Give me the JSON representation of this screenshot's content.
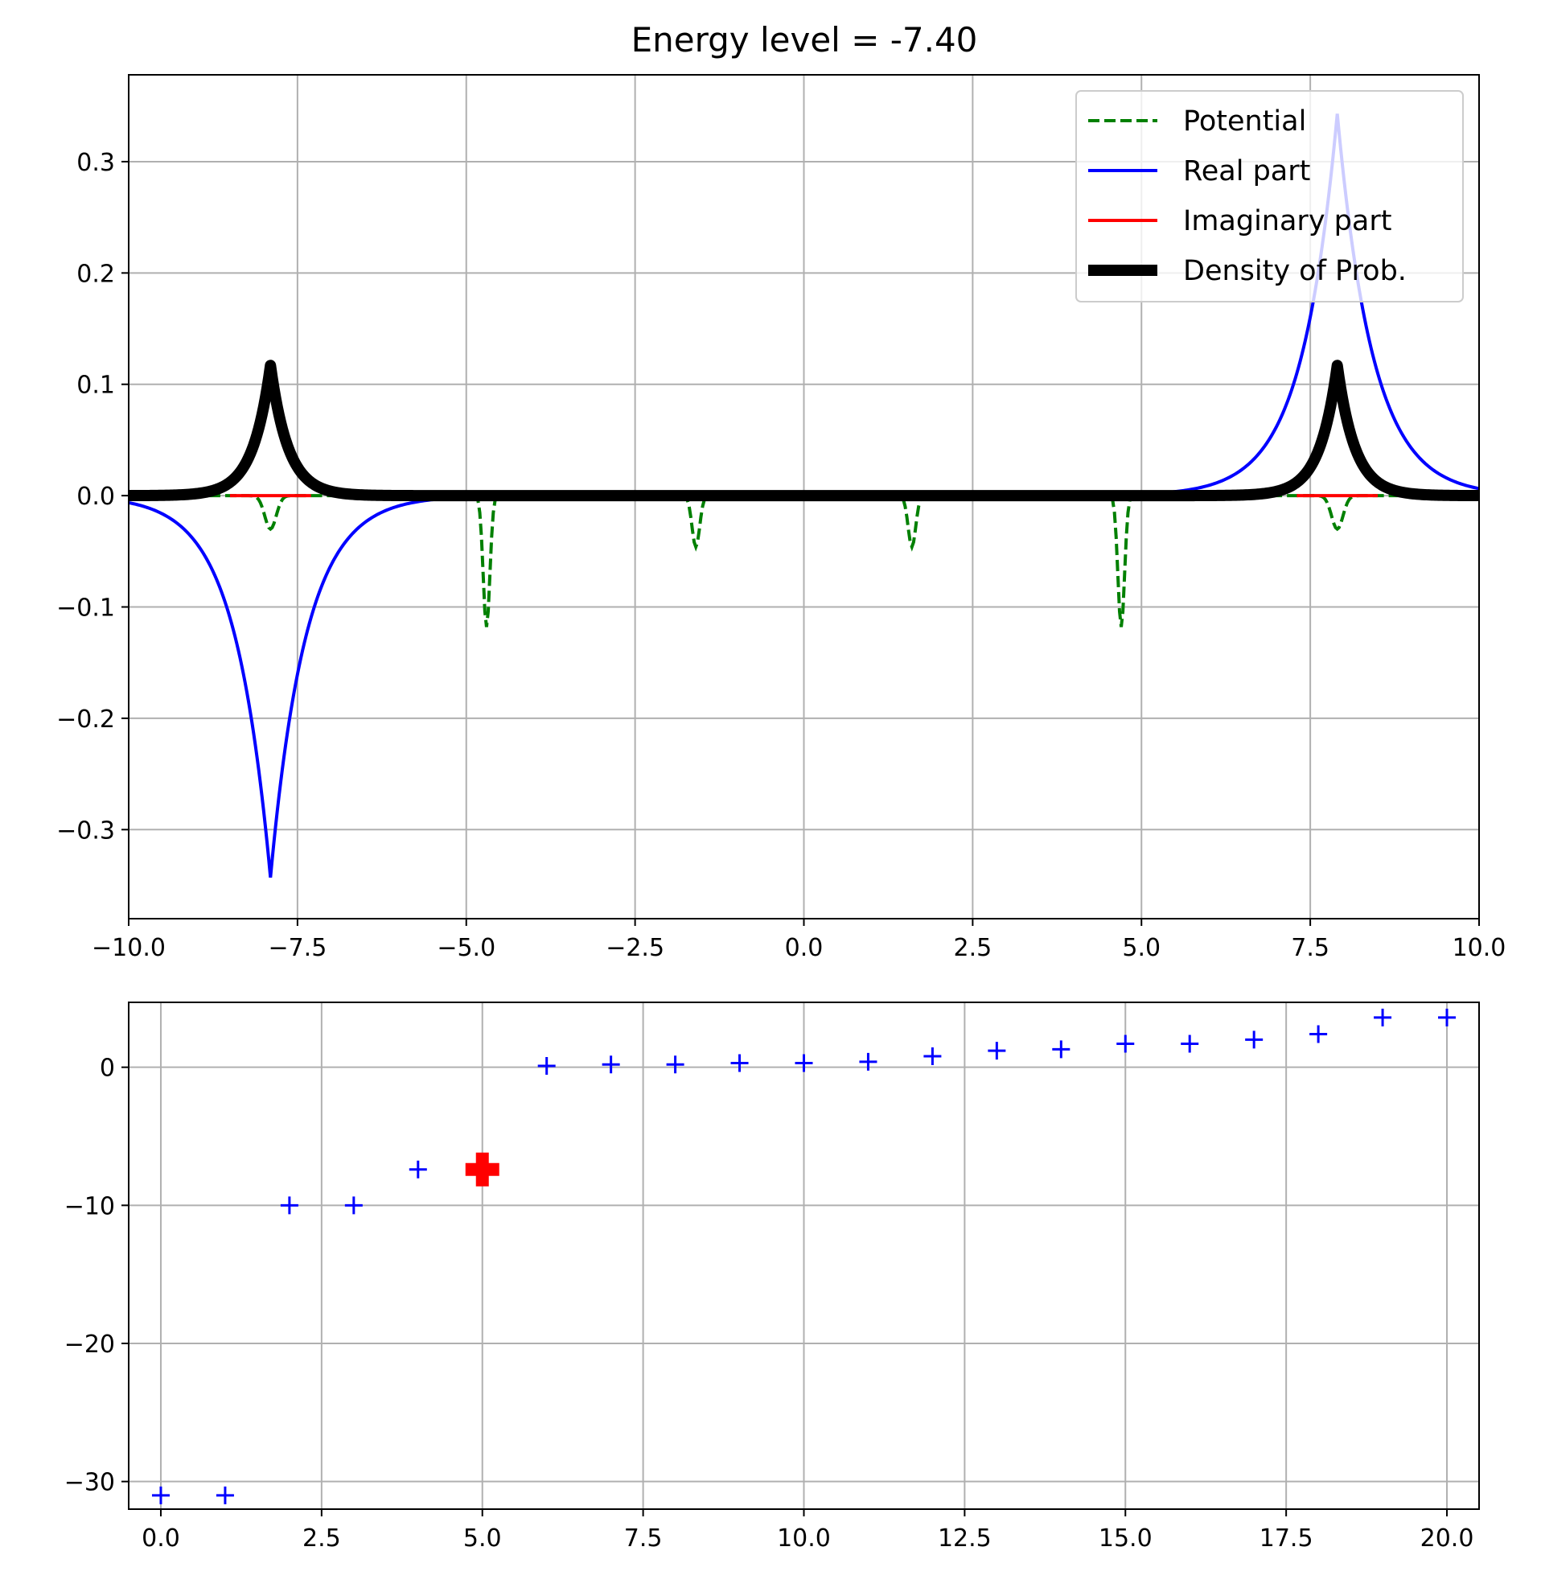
{
  "chart_data": [
    {
      "type": "line",
      "title": "Energy level = -7.40",
      "xlabel": "",
      "ylabel": "",
      "xlim": [
        -10,
        10
      ],
      "ylim": [
        -0.38,
        0.378
      ],
      "grid": true,
      "legend_position": "top-right",
      "x_ticks": [
        -10,
        -7.5,
        -5,
        -2.5,
        0,
        2.5,
        5,
        7.5,
        10
      ],
      "x_tick_labels": [
        "−10.0",
        "−7.5",
        "−5.0",
        "−2.5",
        "0.0",
        "2.5",
        "5.0",
        "7.5",
        "10.0"
      ],
      "y_ticks": [
        -0.3,
        -0.2,
        -0.1,
        0.0,
        0.1,
        0.2,
        0.3
      ],
      "y_tick_labels": [
        "−0.3",
        "−0.2",
        "−0.1",
        "0.0",
        "0.1",
        "0.2",
        "0.3"
      ],
      "series": [
        {
          "name": "Potential",
          "color": "#008000",
          "style": "dashed",
          "wells": [
            {
              "center": -7.9,
              "depth": -0.03,
              "width": 0.12
            },
            {
              "center": -4.7,
              "depth": -0.118,
              "width": 0.07
            },
            {
              "center": -1.6,
              "depth": -0.046,
              "width": 0.08
            },
            {
              "center": 1.6,
              "depth": -0.046,
              "width": 0.08
            },
            {
              "center": 4.7,
              "depth": -0.118,
              "width": 0.07
            },
            {
              "center": 7.9,
              "depth": -0.03,
              "width": 0.12
            }
          ]
        },
        {
          "name": "Real part",
          "color": "#0000ff",
          "style": "solid",
          "peaks": [
            {
              "center": -7.9,
              "amplitude": -0.343,
              "decay": 1.9
            },
            {
              "center": 7.9,
              "amplitude": 0.343,
              "decay": 1.9
            }
          ]
        },
        {
          "name": "Imaginary part",
          "color": "#ff0000",
          "style": "solid",
          "segments": [
            [
              -8.5,
              -7.3
            ],
            [
              7.3,
              8.5
            ]
          ],
          "value": 0.0
        },
        {
          "name": "Density of Prob.",
          "color": "#000000",
          "style": "thick",
          "peaks": [
            {
              "center": -7.9,
              "amplitude": 0.117,
              "decay": 3.8
            },
            {
              "center": 7.9,
              "amplitude": 0.117,
              "decay": 3.8
            }
          ]
        }
      ]
    },
    {
      "type": "scatter",
      "title": "",
      "xlabel": "",
      "ylabel": "",
      "xlim": [
        -0.5,
        20.5
      ],
      "ylim": [
        -32.0,
        4.7
      ],
      "grid": true,
      "x_ticks": [
        0,
        2.5,
        5,
        7.5,
        10,
        12.5,
        15,
        17.5,
        20
      ],
      "x_tick_labels": [
        "0.0",
        "2.5",
        "5.0",
        "7.5",
        "10.0",
        "12.5",
        "15.0",
        "17.5",
        "20.0"
      ],
      "y_ticks": [
        -30,
        -20,
        -10,
        0
      ],
      "y_tick_labels": [
        "−30",
        "−20",
        "−10",
        "0"
      ],
      "series": [
        {
          "marker": "+",
          "color": "#0000ff",
          "x": [
            0,
            1,
            2,
            3,
            4,
            6,
            7,
            8,
            9,
            10,
            11,
            12,
            13,
            14,
            15,
            16,
            17,
            18,
            19,
            20
          ],
          "y": [
            -31.0,
            -31.0,
            -10.0,
            -10.0,
            -7.4,
            0.1,
            0.2,
            0.2,
            0.3,
            0.3,
            0.4,
            0.8,
            1.2,
            1.3,
            1.7,
            1.7,
            2.0,
            2.4,
            3.6,
            3.6
          ]
        },
        {
          "marker": "P",
          "color": "#ff0000",
          "x": [
            5
          ],
          "y": [
            -7.4
          ]
        }
      ]
    }
  ]
}
